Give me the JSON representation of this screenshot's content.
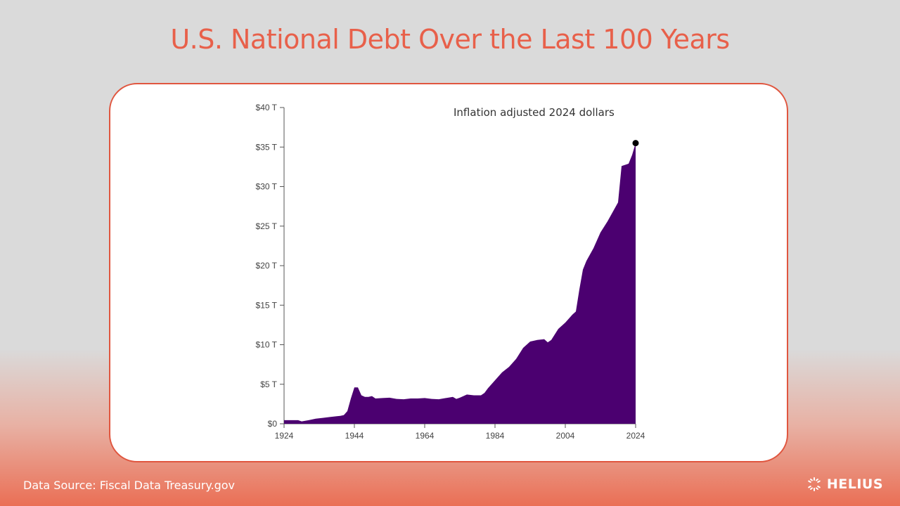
{
  "title": "U.S. National Debt Over the Last 100 Years",
  "footer": {
    "source": "Data Source: Fiscal Data Treasury.gov",
    "brand": "HELIUS"
  },
  "colors": {
    "accent": "#e8604a",
    "area_fill": "#4b0070"
  },
  "icons": {
    "brand": "helius-logo-icon"
  },
  "chart_data": {
    "type": "area",
    "annotation": "Inflation adjusted 2024 dollars",
    "xlabel": "",
    "ylabel": "",
    "xlim": [
      1924,
      2024
    ],
    "ylim": [
      0,
      40
    ],
    "x_ticks": [
      1924,
      1944,
      1964,
      1984,
      2004,
      2024
    ],
    "y_ticks": [
      {
        "value": 0,
        "label": "$0"
      },
      {
        "value": 5,
        "label": "$5 T"
      },
      {
        "value": 10,
        "label": "$10 T"
      },
      {
        "value": 15,
        "label": "$15 T"
      },
      {
        "value": 20,
        "label": "$20 T"
      },
      {
        "value": 25,
        "label": "$25 T"
      },
      {
        "value": 30,
        "label": "$30 T"
      },
      {
        "value": 35,
        "label": "$35 T"
      },
      {
        "value": 40,
        "label": "$40 T"
      }
    ],
    "grid": false,
    "series": [
      {
        "x": [
          1924,
          1926,
          1928,
          1929,
          1931,
          1933,
          1935,
          1937,
          1939,
          1940,
          1941,
          1942,
          1943,
          1944,
          1945,
          1946,
          1947,
          1948,
          1949,
          1950,
          1952,
          1954,
          1956,
          1958,
          1960,
          1962,
          1964,
          1966,
          1968,
          1970,
          1972,
          1973,
          1974,
          1976,
          1978,
          1980,
          1981,
          1982,
          1984,
          1986,
          1988,
          1990,
          1992,
          1994,
          1996,
          1998,
          1999,
          2000,
          2002,
          2004,
          2006,
          2007,
          2008,
          2009,
          2010,
          2012,
          2014,
          2016,
          2018,
          2019,
          2020,
          2022,
          2023,
          2024
        ],
        "values": [
          0.45,
          0.45,
          0.45,
          0.3,
          0.45,
          0.65,
          0.75,
          0.85,
          0.95,
          1.0,
          1.1,
          1.6,
          3.2,
          4.6,
          4.6,
          3.6,
          3.4,
          3.4,
          3.5,
          3.2,
          3.25,
          3.3,
          3.15,
          3.1,
          3.2,
          3.2,
          3.25,
          3.15,
          3.1,
          3.25,
          3.4,
          3.15,
          3.3,
          3.7,
          3.6,
          3.6,
          3.9,
          4.5,
          5.5,
          6.5,
          7.2,
          8.2,
          9.6,
          10.4,
          10.6,
          10.7,
          10.3,
          10.6,
          12.0,
          12.8,
          13.8,
          14.2,
          17.0,
          19.5,
          20.6,
          22.2,
          24.2,
          25.6,
          27.2,
          28.0,
          32.6,
          32.9,
          34.0,
          35.5
        ]
      }
    ],
    "end_marker": {
      "x": 2024,
      "y": 35.5
    }
  }
}
